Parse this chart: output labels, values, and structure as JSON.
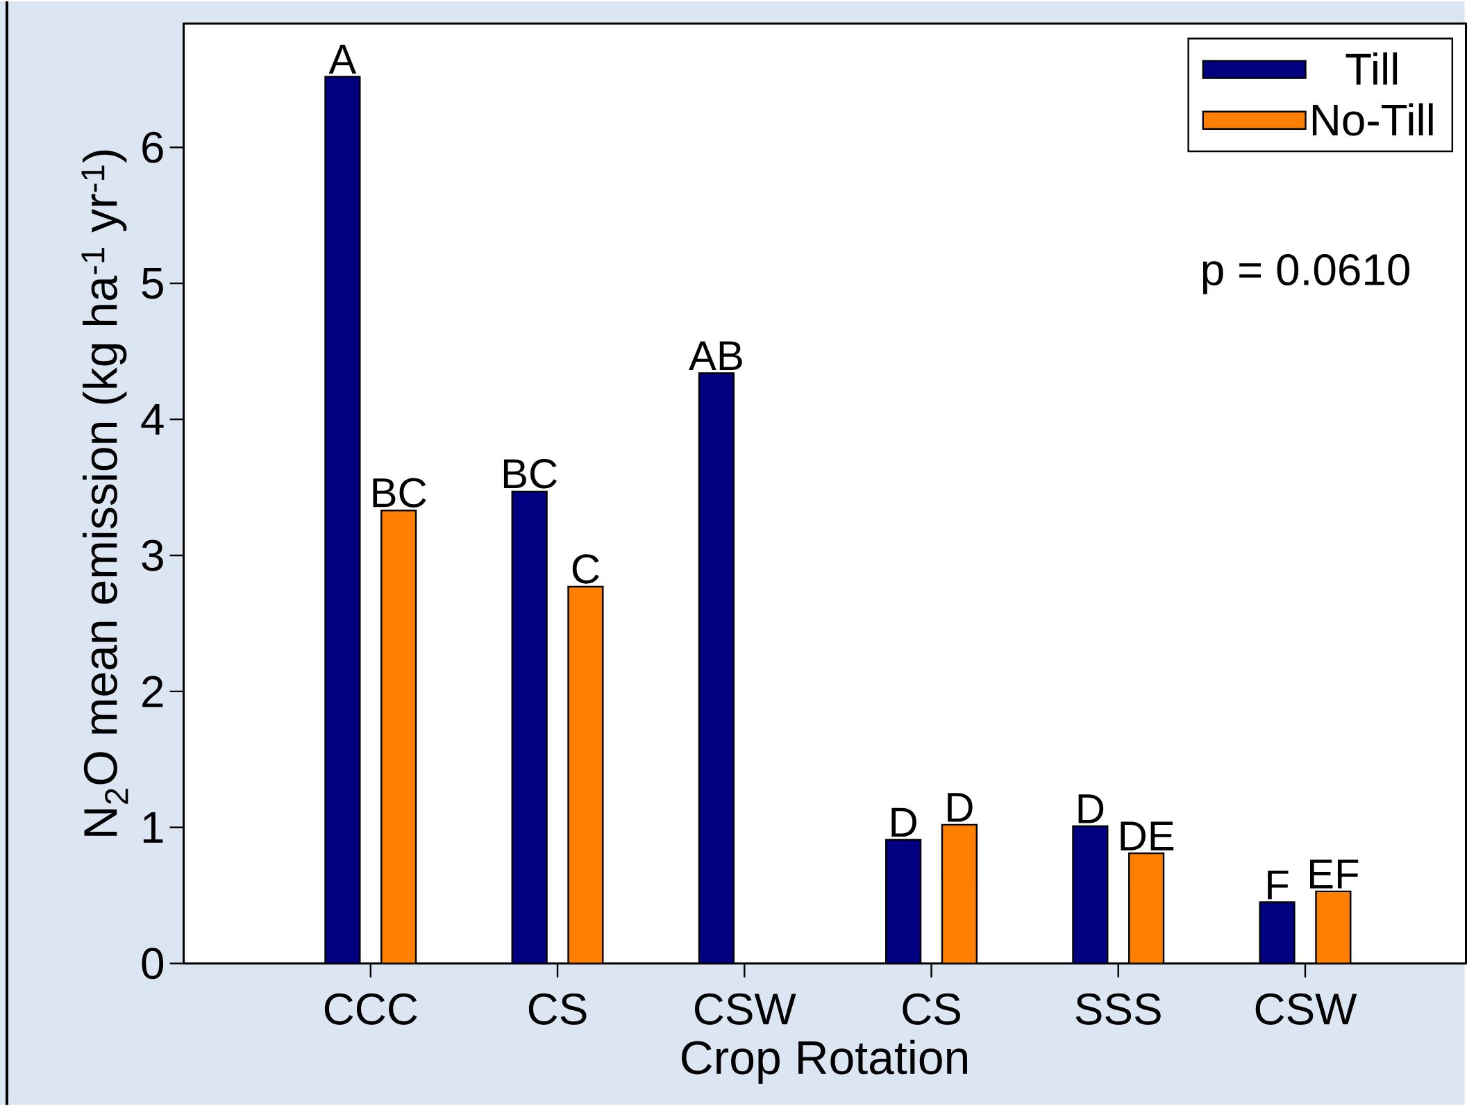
{
  "chart_data": {
    "type": "bar",
    "xlabel": "Crop Rotation",
    "ylabel": "N$_{2}$O mean emission (kg ha$^{-1}$ yr$^{-1}$)",
    "categories": [
      "CCC",
      "CS",
      "CSW",
      "CS",
      "SSS",
      "CSW"
    ],
    "series": [
      {
        "name": "Till",
        "color": "#000080",
        "values": [
          6.52,
          3.47,
          4.34,
          0.91,
          1.01,
          0.45
        ],
        "value_labels": [
          "A",
          "BC",
          "AB",
          "D",
          "D",
          "F"
        ]
      },
      {
        "name": "No-Till",
        "color": "#ff8000",
        "values": [
          3.33,
          2.77,
          null,
          1.02,
          0.81,
          0.53
        ],
        "value_labels": [
          "BC",
          "C",
          null,
          "D",
          "DE",
          "EF"
        ]
      }
    ],
    "ylim": [
      0,
      6.91
    ],
    "yticks": [
      0,
      1,
      2,
      3,
      4,
      5,
      6
    ],
    "legend": "top right",
    "annotations": [
      "p = 0.0610"
    ]
  }
}
